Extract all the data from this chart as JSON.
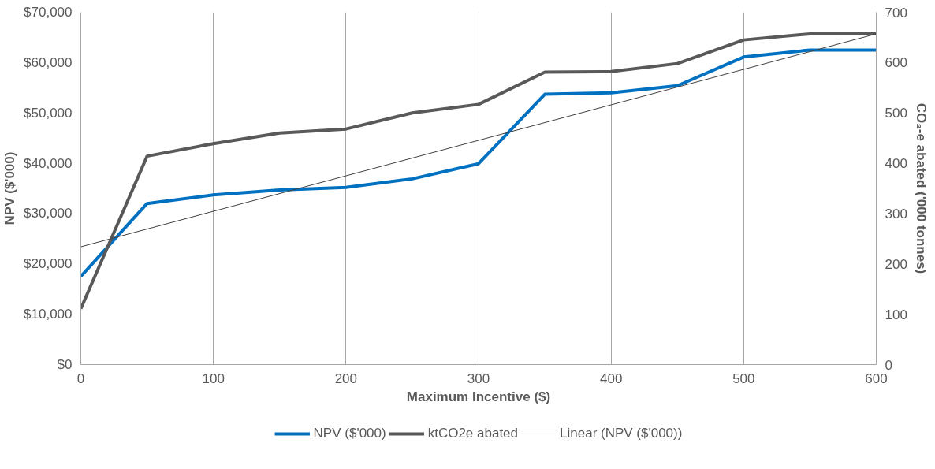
{
  "chart_data": {
    "type": "line",
    "xlabel": "Maximum Incentive ($)",
    "ylabel": "NPV ($'000)",
    "y2label": "CO₂-e abated ('000 tonnes)",
    "x": [
      0,
      50,
      100,
      150,
      200,
      250,
      300,
      350,
      400,
      450,
      500,
      550,
      600
    ],
    "series": [
      {
        "name": "NPV ($'000)",
        "color": "#0070c0",
        "values": [
          17500,
          32000,
          33700,
          34700,
          35200,
          36900,
          39900,
          53700,
          54000,
          55400,
          61100,
          62500,
          62500
        ]
      },
      {
        "name": "ktCO2e abated",
        "color": "#595959",
        "axis": "y2",
        "values": [
          111,
          414,
          439,
          460,
          468,
          500,
          517,
          581,
          582,
          598,
          645,
          657,
          657
        ]
      },
      {
        "name": "Linear (NPV ($'000))",
        "color": "#404040",
        "x": [
          0,
          600
        ],
        "values": [
          23400,
          65700
        ]
      }
    ],
    "xlim": [
      0,
      600
    ],
    "xticks": [
      0,
      100,
      200,
      300,
      400,
      500,
      600
    ],
    "ylim": [
      0,
      70000
    ],
    "yticks": [
      {
        "value": 0,
        "label": "$0"
      },
      {
        "value": 10000,
        "label": "$10,000"
      },
      {
        "value": 20000,
        "label": "$20,000"
      },
      {
        "value": 30000,
        "label": "$30,000"
      },
      {
        "value": 40000,
        "label": "$40,000"
      },
      {
        "value": 50000,
        "label": "$50,000"
      },
      {
        "value": 60000,
        "label": "$60,000"
      },
      {
        "value": 70000,
        "label": "$70,000"
      }
    ],
    "y2lim": [
      0,
      700
    ],
    "y2ticks": [
      0,
      100,
      200,
      300,
      400,
      500,
      600,
      700
    ],
    "grid": "x",
    "legend": "bottom",
    "marker": "none",
    "line_style": "solid"
  }
}
